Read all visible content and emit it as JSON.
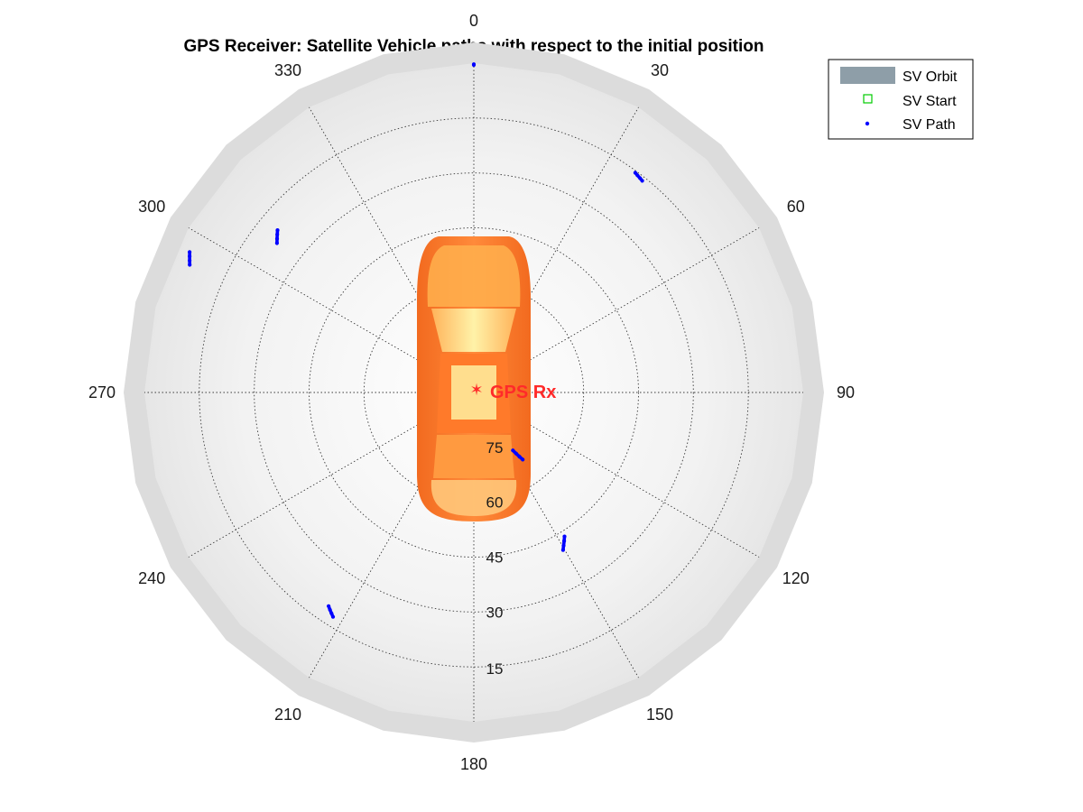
{
  "chart_data": {
    "type": "scatter",
    "projection": "polar-skyplot",
    "title": "GPS Receiver: Satellite Vehicle paths with respect to the initial position",
    "azimuth_ticks": [
      0,
      30,
      60,
      90,
      120,
      150,
      180,
      210,
      240,
      270,
      300,
      330
    ],
    "azimuth_labels": [
      "0",
      "30",
      "60",
      "90",
      "120",
      "150",
      "180",
      "210",
      "240",
      "270",
      "300",
      "330"
    ],
    "elevation_ticks": [
      75,
      60,
      45,
      30,
      15
    ],
    "elevation_labels": [
      "75",
      "60",
      "45",
      "30",
      "15"
    ],
    "elevation_range": [
      0,
      90
    ],
    "grid": true,
    "legend": {
      "placement": "top-right",
      "entries": [
        {
          "label": "SV Orbit",
          "marker": "patch",
          "color": "#8e9ea8"
        },
        {
          "label": "SV Start",
          "marker": "square",
          "color": "#00cc00"
        },
        {
          "label": "SV Path",
          "marker": "dot",
          "color": "#0000ff"
        }
      ]
    },
    "receiver": {
      "label": "GPS Rx",
      "marker": "star",
      "color": "#ff2a2a",
      "az": 0,
      "el": 90
    },
    "series": [
      {
        "points": [
          [
            0,
            0.5
          ],
          [
            0,
            0.3
          ]
        ]
      },
      {
        "points": [
          [
            36.3,
            15.5
          ],
          [
            37.0,
            15.7
          ],
          [
            37.8,
            15.9
          ],
          [
            38.5,
            16.1
          ]
        ]
      },
      {
        "points": [
          [
            147.8,
            43.5
          ],
          [
            148.7,
            42.5
          ],
          [
            149.6,
            41.5
          ],
          [
            150.5,
            40.5
          ]
        ]
      },
      {
        "points": [
          [
            214.2,
            19.4
          ],
          [
            213.5,
            18.8
          ],
          [
            212.8,
            18.2
          ],
          [
            212.1,
            17.6
          ]
        ]
      },
      {
        "points": [
          [
            294.2,
            4.9
          ],
          [
            294.9,
            4.4
          ],
          [
            295.6,
            3.9
          ],
          [
            296.3,
            3.4
          ]
        ]
      },
      {
        "points": [
          [
            307.2,
            22.5
          ],
          [
            308.0,
            21.8
          ],
          [
            308.8,
            21.1
          ],
          [
            309.6,
            20.4
          ]
        ]
      },
      {
        "points": [
          [
            143.9,
            67.3
          ],
          [
            144.6,
            68.5
          ],
          [
            145.3,
            69.7
          ],
          [
            146.0,
            70.9
          ]
        ]
      }
    ],
    "series_color": "#0000ff",
    "orbit_color": "#8e9ea8"
  }
}
